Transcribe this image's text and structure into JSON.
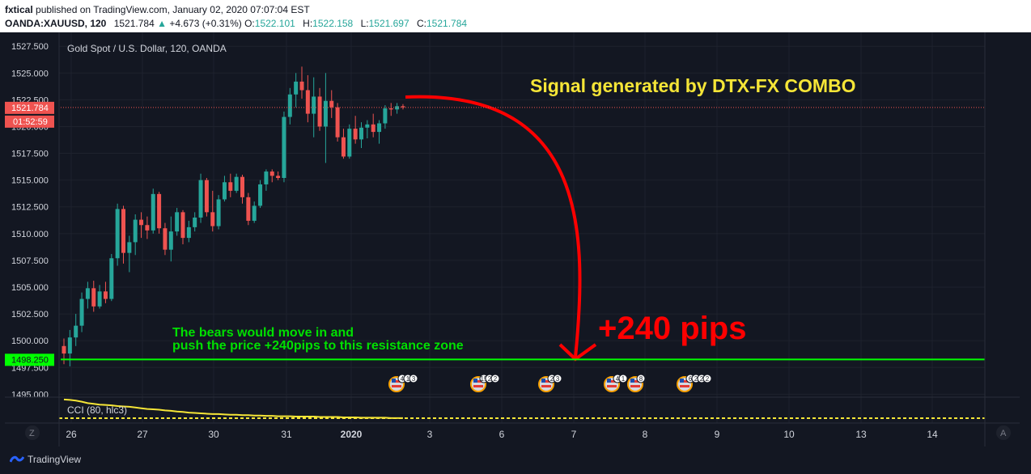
{
  "header": {
    "publisher": "fxtical",
    "published_text": " published on TradingView.com, January 02, 2020 07:07:04 EST",
    "symbol": "OANDA:XAUUSD, 120",
    "price": "1521.784",
    "change": "+4.673 (+0.31%)",
    "o_label": "O:",
    "o_value": "1522.101",
    "h_label": "H:",
    "h_value": "1522.158",
    "l_label": "L:",
    "l_value": "1521.697",
    "c_label": "C:",
    "c_value": "1521.784"
  },
  "chart": {
    "legend": "Gold Spot / U.S. Dollar, 120, OANDA",
    "current_price_tag": "1521.784",
    "countdown_tag": "01:52:59",
    "support_tag": "1498.250",
    "signal_text": "Signal generated by DTX-FX COMBO",
    "pips_text": "+240 pips",
    "note_line1": "The bears would move in and",
    "note_line2": "push the price +240pips to this resistance zone",
    "indicator_label": "CCI (80, hlc3)",
    "left_button": "Z",
    "right_button": "A",
    "colors": {
      "background": "#131722",
      "up": "#26a69a",
      "down": "#ef5350",
      "signal": "#f5e537",
      "pips": "#ff0000",
      "note": "#00e000",
      "support": "#00ff00"
    },
    "events": [
      {
        "date": "Jan 3",
        "badges": [
          "4",
          "1",
          "3"
        ]
      },
      {
        "date": "Jan 6",
        "badges": [
          "15",
          "2",
          "2"
        ]
      },
      {
        "date": "Jan 7",
        "badges": [
          "2",
          "3"
        ]
      },
      {
        "date": "Jan 8",
        "badges": [
          "4",
          "1"
        ]
      },
      {
        "date": "Jan 8",
        "badges": [
          "8"
        ]
      },
      {
        "date": "Jan 9",
        "badges": [
          "6",
          "2",
          "2",
          "2"
        ]
      }
    ]
  },
  "footer": {
    "brand": "TradingView"
  },
  "chart_data": {
    "type": "candlestick",
    "symbol": "OANDA:XAUUSD",
    "timeframe": "120",
    "ylim": [
      1494.8,
      1528.8
    ],
    "y_ticks": [
      "1527.500",
      "1525.000",
      "1522.500",
      "1520.000",
      "1517.500",
      "1515.000",
      "1512.500",
      "1510.000",
      "1507.500",
      "1505.000",
      "1502.500",
      "1500.000",
      "1497.500",
      "1495.000"
    ],
    "x_ticks": [
      "26",
      "27",
      "30",
      "31",
      "2020",
      "3",
      "6",
      "7",
      "8",
      "9",
      "10",
      "13",
      "14"
    ],
    "current_price": 1521.784,
    "support_level": 1498.25,
    "candles": [
      {
        "o": 1499.5,
        "h": 1500.2,
        "l": 1497.8,
        "c": 1498.8
      },
      {
        "o": 1498.8,
        "h": 1501.0,
        "l": 1497.6,
        "c": 1500.3
      },
      {
        "o": 1500.3,
        "h": 1502.5,
        "l": 1499.5,
        "c": 1501.4
      },
      {
        "o": 1501.4,
        "h": 1504.5,
        "l": 1500.8,
        "c": 1503.9
      },
      {
        "o": 1503.9,
        "h": 1505.5,
        "l": 1503.0,
        "c": 1504.9
      },
      {
        "o": 1504.9,
        "h": 1505.6,
        "l": 1502.7,
        "c": 1503.2
      },
      {
        "o": 1503.2,
        "h": 1505.2,
        "l": 1503.0,
        "c": 1504.6
      },
      {
        "o": 1504.6,
        "h": 1505.5,
        "l": 1503.5,
        "c": 1503.9
      },
      {
        "o": 1503.9,
        "h": 1508.1,
        "l": 1503.7,
        "c": 1507.7
      },
      {
        "o": 1507.7,
        "h": 1512.8,
        "l": 1507.0,
        "c": 1512.3
      },
      {
        "o": 1512.3,
        "h": 1512.6,
        "l": 1507.2,
        "c": 1508.2
      },
      {
        "o": 1508.2,
        "h": 1509.8,
        "l": 1506.4,
        "c": 1509.2
      },
      {
        "o": 1509.2,
        "h": 1511.8,
        "l": 1508.0,
        "c": 1511.3
      },
      {
        "o": 1511.3,
        "h": 1512.0,
        "l": 1509.6,
        "c": 1510.8
      },
      {
        "o": 1510.8,
        "h": 1511.6,
        "l": 1509.5,
        "c": 1510.3
      },
      {
        "o": 1510.3,
        "h": 1514.2,
        "l": 1510.0,
        "c": 1513.7
      },
      {
        "o": 1513.7,
        "h": 1513.9,
        "l": 1510.0,
        "c": 1510.5
      },
      {
        "o": 1510.5,
        "h": 1511.0,
        "l": 1508.0,
        "c": 1508.5
      },
      {
        "o": 1508.5,
        "h": 1511.6,
        "l": 1507.4,
        "c": 1510.2
      },
      {
        "o": 1510.2,
        "h": 1512.4,
        "l": 1509.8,
        "c": 1512.0
      },
      {
        "o": 1512.0,
        "h": 1512.2,
        "l": 1509.0,
        "c": 1509.6
      },
      {
        "o": 1509.6,
        "h": 1511.2,
        "l": 1509.2,
        "c": 1510.6
      },
      {
        "o": 1510.6,
        "h": 1512.0,
        "l": 1510.2,
        "c": 1511.5
      },
      {
        "o": 1511.5,
        "h": 1515.6,
        "l": 1511.0,
        "c": 1515.0
      },
      {
        "o": 1515.0,
        "h": 1515.2,
        "l": 1511.6,
        "c": 1512.0
      },
      {
        "o": 1512.0,
        "h": 1514.0,
        "l": 1510.2,
        "c": 1510.7
      },
      {
        "o": 1510.7,
        "h": 1513.6,
        "l": 1510.4,
        "c": 1513.2
      },
      {
        "o": 1513.2,
        "h": 1515.4,
        "l": 1513.0,
        "c": 1514.8
      },
      {
        "o": 1514.8,
        "h": 1515.6,
        "l": 1513.4,
        "c": 1514.0
      },
      {
        "o": 1514.0,
        "h": 1515.6,
        "l": 1513.8,
        "c": 1515.3
      },
      {
        "o": 1515.3,
        "h": 1515.5,
        "l": 1512.8,
        "c": 1513.4
      },
      {
        "o": 1513.4,
        "h": 1513.8,
        "l": 1510.8,
        "c": 1511.2
      },
      {
        "o": 1511.2,
        "h": 1513.0,
        "l": 1511.0,
        "c": 1512.6
      },
      {
        "o": 1512.6,
        "h": 1515.0,
        "l": 1512.4,
        "c": 1514.6
      },
      {
        "o": 1514.6,
        "h": 1516.0,
        "l": 1514.0,
        "c": 1515.8
      },
      {
        "o": 1515.8,
        "h": 1516.0,
        "l": 1514.8,
        "c": 1515.4
      },
      {
        "o": 1515.4,
        "h": 1515.8,
        "l": 1515.0,
        "c": 1515.2
      },
      {
        "o": 1515.2,
        "h": 1521.4,
        "l": 1514.8,
        "c": 1520.9
      },
      {
        "o": 1520.9,
        "h": 1523.6,
        "l": 1520.2,
        "c": 1523.0
      },
      {
        "o": 1523.0,
        "h": 1525.0,
        "l": 1521.8,
        "c": 1524.2
      },
      {
        "o": 1524.2,
        "h": 1525.6,
        "l": 1522.6,
        "c": 1523.4
      },
      {
        "o": 1523.4,
        "h": 1524.8,
        "l": 1520.4,
        "c": 1521.2
      },
      {
        "o": 1521.2,
        "h": 1524.6,
        "l": 1519.0,
        "c": 1522.8
      },
      {
        "o": 1522.8,
        "h": 1523.6,
        "l": 1519.6,
        "c": 1520.0
      },
      {
        "o": 1520.0,
        "h": 1525.0,
        "l": 1516.6,
        "c": 1522.4
      },
      {
        "o": 1522.4,
        "h": 1523.4,
        "l": 1520.8,
        "c": 1521.8
      },
      {
        "o": 1521.8,
        "h": 1522.2,
        "l": 1518.6,
        "c": 1519.0
      },
      {
        "o": 1519.0,
        "h": 1519.8,
        "l": 1517.0,
        "c": 1517.2
      },
      {
        "o": 1517.2,
        "h": 1520.2,
        "l": 1517.0,
        "c": 1519.8
      },
      {
        "o": 1519.8,
        "h": 1521.0,
        "l": 1518.4,
        "c": 1518.8
      },
      {
        "o": 1518.8,
        "h": 1520.4,
        "l": 1518.0,
        "c": 1519.9
      },
      {
        "o": 1519.9,
        "h": 1520.6,
        "l": 1518.9,
        "c": 1520.2
      },
      {
        "o": 1520.2,
        "h": 1521.2,
        "l": 1519.0,
        "c": 1519.5
      },
      {
        "o": 1519.5,
        "h": 1520.6,
        "l": 1518.4,
        "c": 1520.3
      },
      {
        "o": 1520.3,
        "h": 1522.0,
        "l": 1519.8,
        "c": 1521.7
      },
      {
        "o": 1521.7,
        "h": 1522.2,
        "l": 1521.0,
        "c": 1521.6
      },
      {
        "o": 1521.6,
        "h": 1522.2,
        "l": 1521.2,
        "c": 1521.9
      },
      {
        "o": 1521.9,
        "h": 1522.1,
        "l": 1521.6,
        "c": 1521.8
      }
    ],
    "cci_values": [
      98,
      97,
      95,
      92,
      88,
      86,
      84,
      83,
      82,
      80,
      79,
      78,
      76,
      74,
      72,
      71,
      70,
      68,
      67,
      65,
      64,
      62,
      61,
      60,
      59,
      58,
      58,
      57,
      56,
      56,
      55,
      55,
      54,
      54,
      53,
      53,
      52,
      52,
      52,
      51,
      51,
      51,
      51,
      50,
      50,
      50,
      50,
      49,
      49,
      49,
      48,
      48,
      48,
      48,
      48,
      47,
      47,
      47
    ],
    "cci_ylim": [
      40,
      100
    ]
  }
}
